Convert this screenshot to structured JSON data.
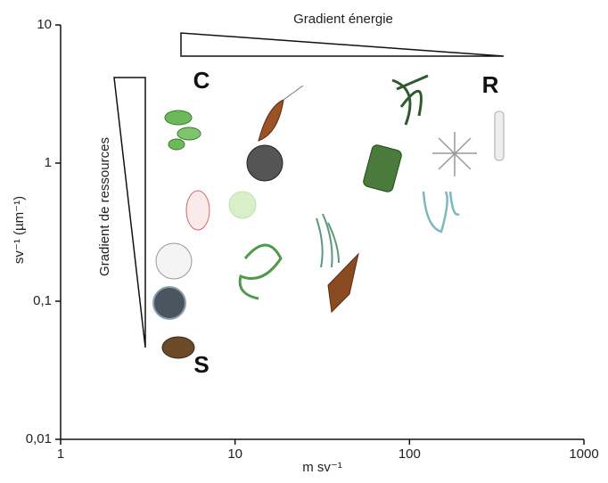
{
  "chart_data": {
    "type": "scatter",
    "x_label": "m sv⁻¹",
    "y_label": "sv⁻¹ (µm⁻¹)",
    "xscale": "log",
    "yscale": "log",
    "xlim": [
      1,
      1000
    ],
    "ylim": [
      0.01,
      10
    ],
    "xticks": [
      1,
      10,
      100,
      1000
    ],
    "yticks": [
      {
        "value": 0.01,
        "label": "0,01"
      },
      {
        "value": 0.1,
        "label": "0,1"
      },
      1,
      10
    ],
    "annotations": [
      "Gradient énergie",
      "Gradient de ressources",
      "C",
      "R",
      "S"
    ]
  }
}
